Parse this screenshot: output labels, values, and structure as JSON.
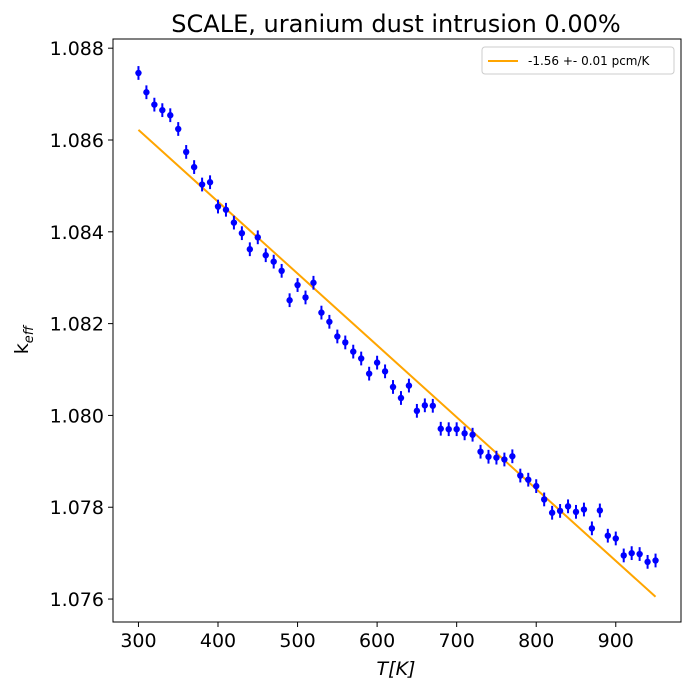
{
  "chart_data": {
    "type": "scatter",
    "title": "SCALE, uranium dust intrusion  0.00%",
    "xlabel": "T[K]",
    "ylabel_main": "k",
    "ylabel_sub": "eff",
    "xlim": [
      268,
      982
    ],
    "ylim": [
      1.0755,
      1.0882
    ],
    "xticks": [
      300,
      400,
      500,
      600,
      700,
      800,
      900
    ],
    "yticks": [
      1.076,
      1.078,
      1.08,
      1.082,
      1.084,
      1.086,
      1.088
    ],
    "ytick_labels": [
      "1.076",
      "1.078",
      "1.080",
      "1.082",
      "1.084",
      "1.086",
      "1.088"
    ],
    "grid": false,
    "legend_position": "top-right",
    "colors": {
      "points": "#0000ff",
      "fit": "#ffa500",
      "axes": "#000000"
    },
    "series": [
      {
        "kind": "errorbar",
        "yerr": 0.00015,
        "x": [
          300,
          310,
          320,
          330,
          340,
          350,
          360,
          370,
          380,
          390,
          400,
          410,
          420,
          430,
          440,
          450,
          460,
          470,
          480,
          490,
          500,
          510,
          520,
          530,
          540,
          550,
          560,
          570,
          580,
          590,
          600,
          610,
          620,
          630,
          640,
          650,
          660,
          670,
          680,
          690,
          700,
          710,
          720,
          730,
          740,
          750,
          760,
          770,
          780,
          790,
          800,
          810,
          820,
          830,
          840,
          850,
          860,
          870,
          880,
          890,
          900,
          910,
          920,
          930,
          940,
          950
        ],
        "y": [
          1.08746,
          1.08704,
          1.08677,
          1.08665,
          1.08654,
          1.08624,
          1.08574,
          1.08541,
          1.08503,
          1.08508,
          1.08455,
          1.08448,
          1.0842,
          1.08397,
          1.08362,
          1.08388,
          1.08349,
          1.08335,
          1.08315,
          1.08251,
          1.08284,
          1.08257,
          1.08289,
          1.08224,
          1.08204,
          1.08172,
          1.08159,
          1.08139,
          1.08124,
          1.08091,
          1.08115,
          1.08096,
          1.08062,
          1.08038,
          1.08065,
          1.0801,
          1.08022,
          1.08021,
          1.07971,
          1.0797,
          1.0797,
          1.07961,
          1.07958,
          1.07921,
          1.0791,
          1.07908,
          1.07904,
          1.07911,
          1.07869,
          1.0786,
          1.07846,
          1.07817,
          1.07788,
          1.07792,
          1.07802,
          1.0779,
          1.07795,
          1.07754,
          1.07793,
          1.07738,
          1.07732,
          1.07695,
          1.077,
          1.07698,
          1.07681,
          1.07684
        ]
      },
      {
        "kind": "line",
        "name": "-1.56 +- 0.01 pcm/K",
        "x": [
          300,
          950
        ],
        "y": [
          1.08622,
          1.07605
        ]
      }
    ]
  }
}
